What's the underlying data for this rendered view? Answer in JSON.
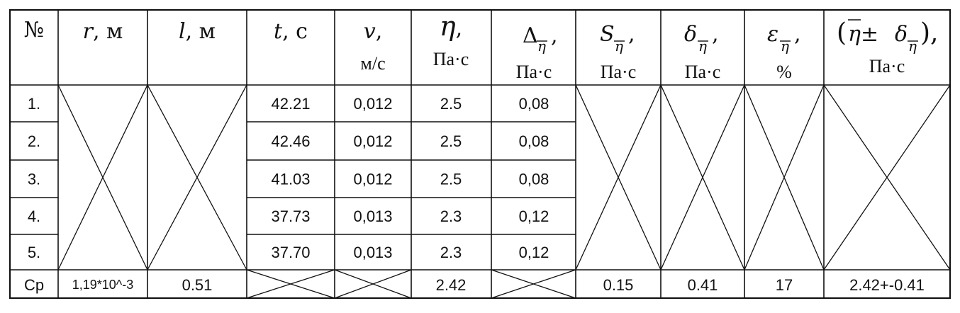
{
  "table": {
    "headers": {
      "num": "№",
      "r": {
        "symbol": "r",
        "unit": ", м"
      },
      "l": {
        "symbol": "l",
        "unit": ", м"
      },
      "t": {
        "symbol": "t",
        "unit": ", с"
      },
      "v": {
        "symbol": "v",
        "sep": ",",
        "unit": "м/с"
      },
      "eta": {
        "symbol": "η",
        "sep": ",",
        "unit": "Па·с"
      },
      "delta_abs": {
        "symbol": "Δ",
        "sub": "η",
        "sep": ",",
        "unit": "Па·с"
      },
      "s": {
        "symbol": "S",
        "sub": "η",
        "sep": ",",
        "unit": "Па·с"
      },
      "delta": {
        "symbol": "δ",
        "sub": "η",
        "sep": ",",
        "unit": "Па·с"
      },
      "eps": {
        "symbol": "ε",
        "sub": "η",
        "sep": ",",
        "unit": "%"
      },
      "result": {
        "open": "(",
        "eta": "η",
        "pm": " ± ",
        "delta": "δ",
        "sub": "η",
        "close": "),",
        "unit": "Па·с"
      }
    },
    "rows": [
      {
        "num": "1.",
        "t": "42.21",
        "v": "0,012",
        "eta": "2.5",
        "delta_abs": "0,08"
      },
      {
        "num": "2.",
        "t": "42.46",
        "v": "0,012",
        "eta": "2.5",
        "delta_abs": "0,08"
      },
      {
        "num": "3.",
        "t": "41.03",
        "v": "0,012",
        "eta": "2.5",
        "delta_abs": "0,08"
      },
      {
        "num": "4.",
        "t": "37.73",
        "v": "0,013",
        "eta": "2.3",
        "delta_abs": "0,12"
      },
      {
        "num": "5.",
        "t": "37.70",
        "v": "0,013",
        "eta": "2.3",
        "delta_abs": "0,12"
      }
    ],
    "avg": {
      "label": "Ср",
      "r": "1,19*10^-3",
      "l": "0.51",
      "eta": "2.42",
      "s": "0.15",
      "delta": "0.41",
      "eps": "17",
      "result": "2.42+-0.41"
    }
  }
}
